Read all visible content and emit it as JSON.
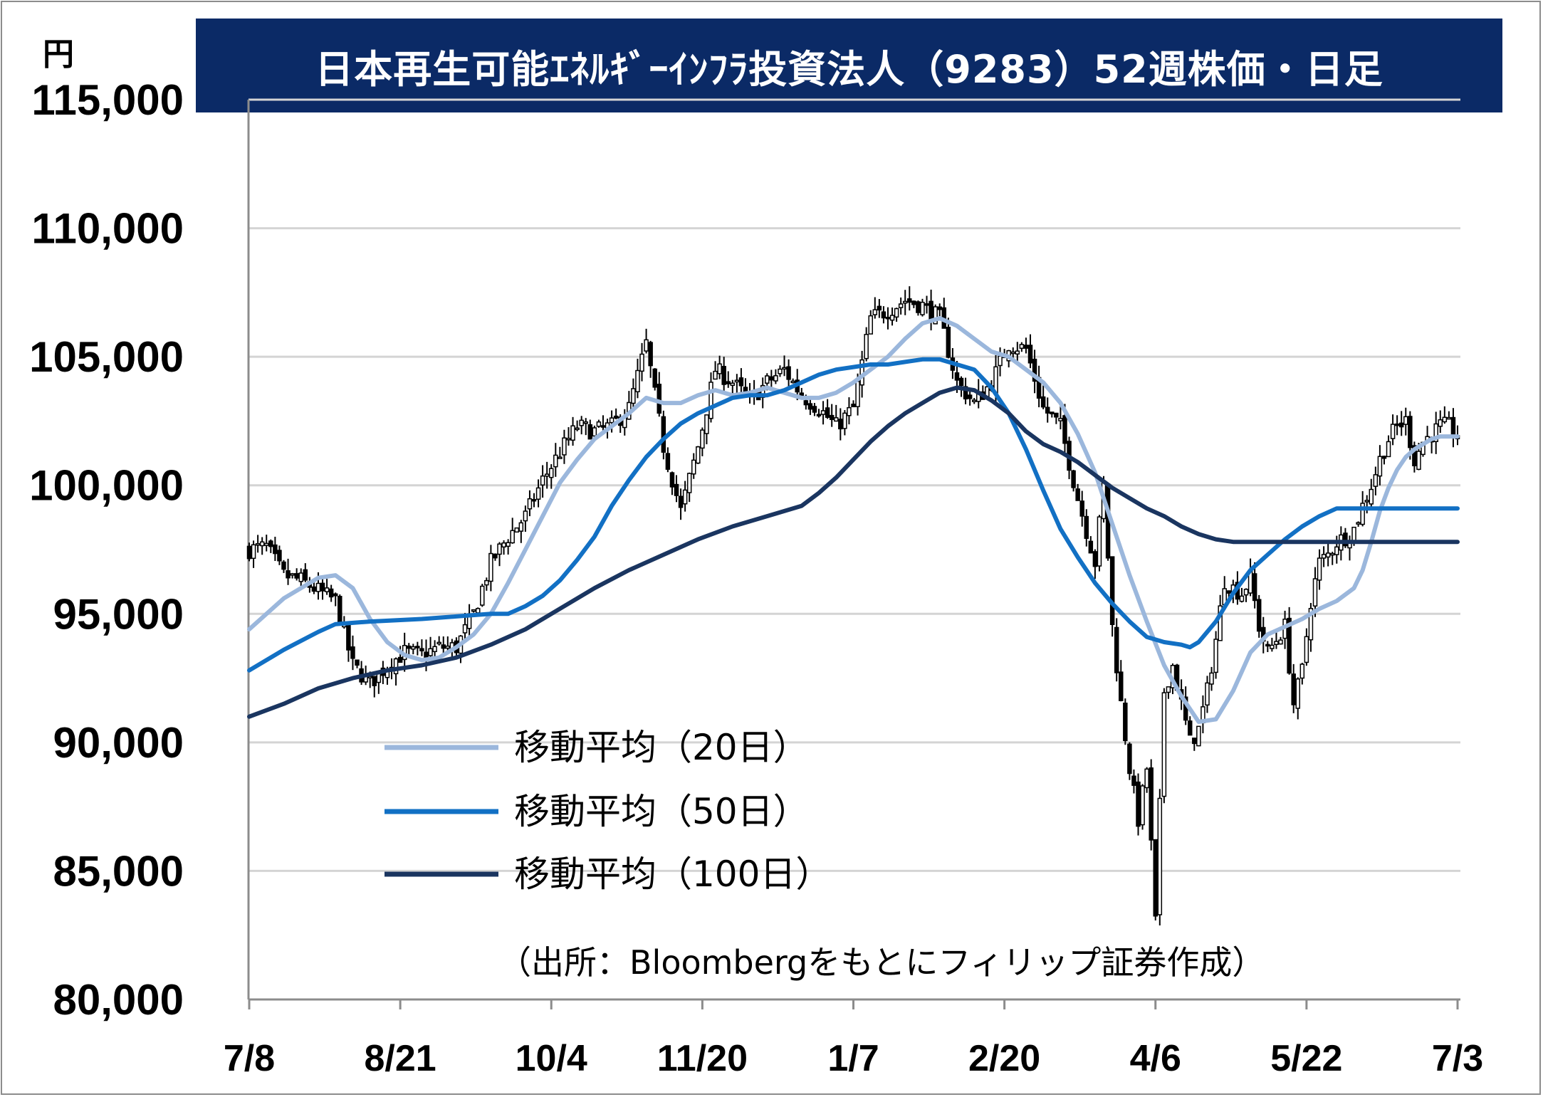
{
  "title": "日本再生可能ｴﾈﾙｷﾞｰｲﾝﾌﾗ投資法人（9283）52週株価・日足",
  "unit_label": "円",
  "source": "（出所：Bloombergをもとにフィリップ証券作成）",
  "colors": {
    "title_bg": "#0b2a66",
    "ma20": "#9bb7dc",
    "ma50": "#1270c4",
    "ma100": "#1a3560",
    "candle": "#000000",
    "grid": "#d4d4d4"
  },
  "chart_data": {
    "type": "candlestick",
    "ylim": [
      80000,
      115000
    ],
    "yticks": [
      80000,
      85000,
      90000,
      95000,
      100000,
      105000,
      110000,
      115000
    ],
    "ytick_labels": [
      "80,000",
      "85,000",
      "90,000",
      "95,000",
      "100,000",
      "105,000",
      "110,000",
      "115,000"
    ],
    "xticks": [
      "7/8",
      "8/21",
      "10/4",
      "11/20",
      "1/7",
      "2/20",
      "4/6",
      "5/22",
      "7/3"
    ],
    "grid": true,
    "legend_position": "lower-left",
    "legend": [
      "移動平均（20日）",
      "移動平均（50日）",
      "移動平均（100日）"
    ],
    "close_approx": [
      [
        0,
        97500
      ],
      [
        4,
        97600
      ],
      [
        8,
        96500
      ],
      [
        12,
        96300
      ],
      [
        16,
        95900
      ],
      [
        20,
        95500
      ],
      [
        24,
        93000
      ],
      [
        28,
        92300
      ],
      [
        32,
        93000
      ],
      [
        36,
        93500
      ],
      [
        40,
        93400
      ],
      [
        44,
        93700
      ],
      [
        48,
        93700
      ],
      [
        52,
        95000
      ],
      [
        56,
        97000
      ],
      [
        60,
        98000
      ],
      [
        64,
        98800
      ],
      [
        68,
        100200
      ],
      [
        72,
        101300
      ],
      [
        76,
        102300
      ],
      [
        80,
        102100
      ],
      [
        84,
        102300
      ],
      [
        88,
        103000
      ],
      [
        92,
        105500
      ],
      [
        96,
        101500
      ],
      [
        100,
        99000
      ],
      [
        104,
        101500
      ],
      [
        108,
        104500
      ],
      [
        112,
        104000
      ],
      [
        116,
        103300
      ],
      [
        120,
        104000
      ],
      [
        124,
        104500
      ],
      [
        128,
        103500
      ],
      [
        132,
        103000
      ],
      [
        136,
        102300
      ],
      [
        140,
        103000
      ],
      [
        144,
        106500
      ],
      [
        148,
        106800
      ],
      [
        152,
        107200
      ],
      [
        156,
        107000
      ],
      [
        160,
        106500
      ],
      [
        164,
        104000
      ],
      [
        168,
        103200
      ],
      [
        172,
        104000
      ],
      [
        176,
        105500
      ],
      [
        180,
        105300
      ],
      [
        184,
        103000
      ],
      [
        188,
        102300
      ],
      [
        192,
        99500
      ],
      [
        196,
        97000
      ],
      [
        198,
        100000
      ],
      [
        200,
        94500
      ],
      [
        202,
        91500
      ],
      [
        204,
        89000
      ],
      [
        206,
        87000
      ],
      [
        208,
        89000
      ],
      [
        210,
        83000
      ],
      [
        212,
        92000
      ],
      [
        214,
        93000
      ],
      [
        216,
        91500
      ],
      [
        218,
        90000
      ],
      [
        220,
        90500
      ],
      [
        222,
        92000
      ],
      [
        224,
        94000
      ],
      [
        226,
        96300
      ],
      [
        228,
        96000
      ],
      [
        230,
        95800
      ],
      [
        232,
        96400
      ],
      [
        234,
        94500
      ],
      [
        236,
        93500
      ],
      [
        238,
        94000
      ],
      [
        240,
        94500
      ],
      [
        242,
        91500
      ],
      [
        244,
        92800
      ],
      [
        246,
        95500
      ],
      [
        248,
        97000
      ],
      [
        250,
        97300
      ],
      [
        252,
        97800
      ],
      [
        254,
        98000
      ],
      [
        256,
        98300
      ],
      [
        258,
        99200
      ],
      [
        260,
        100000
      ],
      [
        262,
        101000
      ],
      [
        264,
        101800
      ],
      [
        266,
        102300
      ],
      [
        268,
        102500
      ],
      [
        270,
        101000
      ],
      [
        272,
        101700
      ],
      [
        274,
        102000
      ],
      [
        276,
        102300
      ],
      [
        278,
        102300
      ],
      [
        280,
        101900
      ]
    ],
    "series": [
      {
        "name": "移動平均（20日）",
        "points": [
          [
            0,
            94400
          ],
          [
            8,
            95600
          ],
          [
            16,
            96400
          ],
          [
            20,
            96500
          ],
          [
            24,
            96000
          ],
          [
            28,
            94800
          ],
          [
            32,
            93900
          ],
          [
            36,
            93400
          ],
          [
            40,
            93200
          ],
          [
            44,
            93300
          ],
          [
            48,
            93700
          ],
          [
            52,
            94200
          ],
          [
            56,
            95000
          ],
          [
            60,
            96200
          ],
          [
            64,
            97500
          ],
          [
            68,
            98800
          ],
          [
            72,
            100100
          ],
          [
            76,
            101000
          ],
          [
            80,
            101800
          ],
          [
            84,
            102300
          ],
          [
            88,
            102800
          ],
          [
            92,
            103400
          ],
          [
            96,
            103200
          ],
          [
            100,
            103200
          ],
          [
            104,
            103500
          ],
          [
            108,
            103700
          ],
          [
            112,
            103500
          ],
          [
            116,
            103600
          ],
          [
            120,
            103800
          ],
          [
            124,
            103600
          ],
          [
            128,
            103400
          ],
          [
            132,
            103400
          ],
          [
            136,
            103600
          ],
          [
            140,
            104000
          ],
          [
            144,
            104500
          ],
          [
            148,
            105000
          ],
          [
            152,
            105700
          ],
          [
            156,
            106300
          ],
          [
            160,
            106500
          ],
          [
            164,
            106200
          ],
          [
            168,
            105700
          ],
          [
            172,
            105200
          ],
          [
            176,
            105000
          ],
          [
            180,
            104500
          ],
          [
            184,
            104000
          ],
          [
            188,
            103200
          ],
          [
            192,
            102000
          ],
          [
            196,
            100500
          ],
          [
            200,
            98500
          ],
          [
            204,
            96500
          ],
          [
            208,
            94700
          ],
          [
            212,
            93000
          ],
          [
            216,
            91800
          ],
          [
            220,
            90800
          ],
          [
            224,
            90900
          ],
          [
            228,
            92000
          ],
          [
            232,
            93500
          ],
          [
            236,
            94200
          ],
          [
            240,
            94500
          ],
          [
            244,
            94800
          ],
          [
            248,
            95200
          ],
          [
            252,
            95500
          ],
          [
            256,
            96000
          ],
          [
            258,
            96700
          ],
          [
            260,
            97800
          ],
          [
            262,
            99000
          ],
          [
            264,
            99900
          ],
          [
            266,
            100600
          ],
          [
            268,
            101100
          ],
          [
            270,
            101400
          ],
          [
            272,
            101600
          ],
          [
            274,
            101800
          ],
          [
            276,
            101900
          ],
          [
            280,
            101900
          ]
        ]
      },
      {
        "name": "移動平均（50日）",
        "points": [
          [
            0,
            92800
          ],
          [
            8,
            93600
          ],
          [
            16,
            94300
          ],
          [
            20,
            94600
          ],
          [
            28,
            94700
          ],
          [
            40,
            94800
          ],
          [
            48,
            94900
          ],
          [
            56,
            95000
          ],
          [
            60,
            95000
          ],
          [
            64,
            95300
          ],
          [
            68,
            95700
          ],
          [
            72,
            96300
          ],
          [
            76,
            97100
          ],
          [
            80,
            98000
          ],
          [
            84,
            99200
          ],
          [
            88,
            100200
          ],
          [
            92,
            101100
          ],
          [
            96,
            101800
          ],
          [
            100,
            102400
          ],
          [
            104,
            102800
          ],
          [
            108,
            103100
          ],
          [
            112,
            103400
          ],
          [
            116,
            103500
          ],
          [
            120,
            103500
          ],
          [
            124,
            103700
          ],
          [
            128,
            104000
          ],
          [
            132,
            104300
          ],
          [
            136,
            104500
          ],
          [
            140,
            104600
          ],
          [
            144,
            104700
          ],
          [
            148,
            104700
          ],
          [
            152,
            104800
          ],
          [
            156,
            104900
          ],
          [
            160,
            104900
          ],
          [
            164,
            104700
          ],
          [
            168,
            104500
          ],
          [
            172,
            103800
          ],
          [
            176,
            102800
          ],
          [
            180,
            101400
          ],
          [
            184,
            99800
          ],
          [
            188,
            98300
          ],
          [
            192,
            97200
          ],
          [
            196,
            96200
          ],
          [
            200,
            95400
          ],
          [
            204,
            94700
          ],
          [
            208,
            94100
          ],
          [
            212,
            93900
          ],
          [
            216,
            93800
          ],
          [
            218,
            93700
          ],
          [
            220,
            93900
          ],
          [
            224,
            94700
          ],
          [
            228,
            95800
          ],
          [
            232,
            96700
          ],
          [
            236,
            97300
          ],
          [
            240,
            97900
          ],
          [
            244,
            98400
          ],
          [
            248,
            98800
          ],
          [
            252,
            99100
          ],
          [
            280,
            99100
          ]
        ]
      },
      {
        "name": "移動平均（100日）",
        "points": [
          [
            0,
            91000
          ],
          [
            8,
            91500
          ],
          [
            16,
            92100
          ],
          [
            24,
            92500
          ],
          [
            32,
            92800
          ],
          [
            40,
            93000
          ],
          [
            48,
            93300
          ],
          [
            56,
            93800
          ],
          [
            64,
            94400
          ],
          [
            72,
            95200
          ],
          [
            80,
            96000
          ],
          [
            88,
            96700
          ],
          [
            96,
            97300
          ],
          [
            104,
            97900
          ],
          [
            112,
            98400
          ],
          [
            120,
            98800
          ],
          [
            128,
            99200
          ],
          [
            132,
            99700
          ],
          [
            136,
            100300
          ],
          [
            140,
            101000
          ],
          [
            144,
            101700
          ],
          [
            148,
            102300
          ],
          [
            152,
            102800
          ],
          [
            156,
            103200
          ],
          [
            160,
            103600
          ],
          [
            164,
            103800
          ],
          [
            168,
            103700
          ],
          [
            172,
            103300
          ],
          [
            176,
            102800
          ],
          [
            180,
            102100
          ],
          [
            184,
            101600
          ],
          [
            188,
            101300
          ],
          [
            192,
            100900
          ],
          [
            196,
            100400
          ],
          [
            200,
            99900
          ],
          [
            204,
            99500
          ],
          [
            208,
            99100
          ],
          [
            212,
            98800
          ],
          [
            216,
            98400
          ],
          [
            220,
            98100
          ],
          [
            224,
            97900
          ],
          [
            228,
            97800
          ],
          [
            280,
            97800
          ]
        ]
      }
    ]
  }
}
